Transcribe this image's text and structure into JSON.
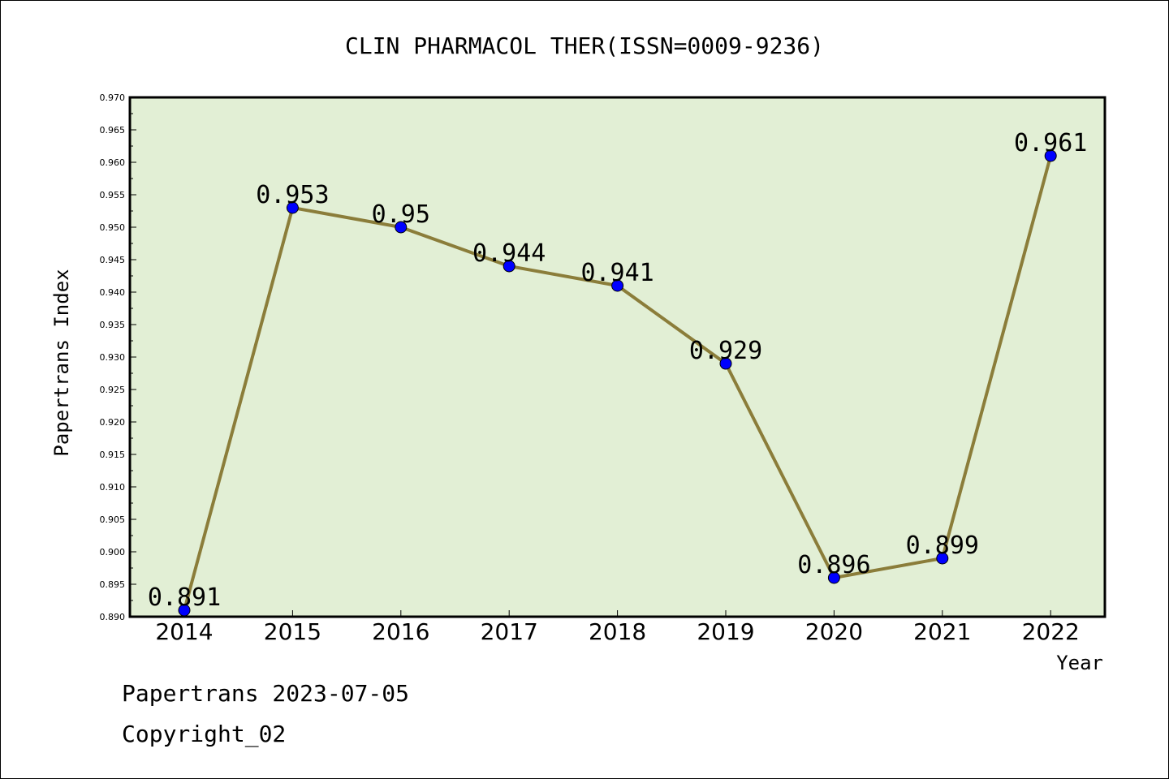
{
  "chart_data": {
    "type": "line",
    "title": "CLIN PHARMACOL THER(ISSN=0009-9236)",
    "xlabel": "Year",
    "ylabel": "Papertrans Index",
    "categories": [
      "2014",
      "2015",
      "2016",
      "2017",
      "2018",
      "2019",
      "2020",
      "2021",
      "2022"
    ],
    "values": [
      0.891,
      0.953,
      0.95,
      0.944,
      0.941,
      0.929,
      0.896,
      0.899,
      0.961
    ],
    "data_labels": [
      "0.891",
      "0.953",
      "0.95",
      "0.944",
      "0.941",
      "0.929",
      "0.896",
      "0.899",
      "0.961"
    ],
    "ylim": [
      0.89,
      0.97
    ],
    "yticks": [
      "0.890",
      "0.895",
      "0.900",
      "0.905",
      "0.910",
      "0.915",
      "0.920",
      "0.925",
      "0.930",
      "0.935",
      "0.940",
      "0.945",
      "0.950",
      "0.955",
      "0.960",
      "0.965",
      "0.970"
    ],
    "grid": false,
    "legend": "none",
    "colors": {
      "plot_background": "#e2efd5",
      "line": "#8b7d3a",
      "marker": "#0000ff"
    }
  },
  "footer": {
    "line1": "Papertrans 2023-07-05",
    "line2": "Copyright_02"
  }
}
